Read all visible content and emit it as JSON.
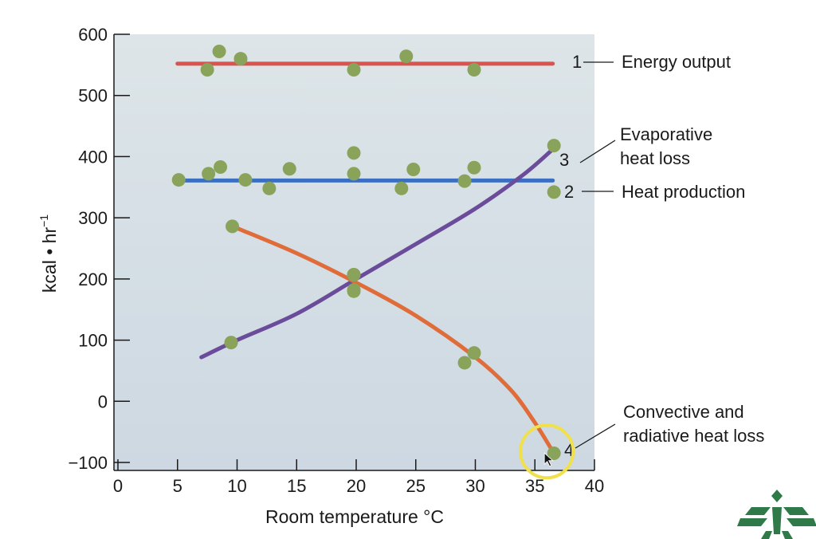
{
  "chart_data": {
    "type": "scatter",
    "title": "",
    "xlabel": "Room temperature °C",
    "ylabel": "kcal • hr",
    "ylabel_superscript": "−1",
    "xlim": [
      0,
      40
    ],
    "ylim": [
      -100,
      600
    ],
    "x_ticks": [
      0,
      5,
      10,
      15,
      20,
      25,
      30,
      35,
      40
    ],
    "y_ticks": [
      600,
      500,
      400,
      300,
      200,
      100,
      0,
      -100
    ],
    "y_tick_labels": [
      "600",
      "500",
      "400",
      "300",
      "200",
      "100",
      "0",
      "−100"
    ],
    "grid": false,
    "series": [
      {
        "label": "1",
        "name_lines": [
          "Energy output"
        ],
        "color": "#d9534f",
        "fit": "linear",
        "line": [
          [
            5,
            552
          ],
          [
            36.5,
            552
          ]
        ],
        "points": [
          [
            7.5,
            542
          ],
          [
            8.5,
            572
          ],
          [
            10.3,
            560
          ],
          [
            19.8,
            542
          ],
          [
            24.2,
            564
          ],
          [
            29.9,
            542
          ]
        ]
      },
      {
        "label": "2",
        "name_lines": [
          "Heat production"
        ],
        "color": "#3a6fc4",
        "fit": "linear",
        "line": [
          [
            5.5,
            361
          ],
          [
            36.5,
            361
          ]
        ],
        "points": [
          [
            5.1,
            362
          ],
          [
            7.6,
            372
          ],
          [
            8.6,
            383
          ],
          [
            10.7,
            362
          ],
          [
            12.7,
            348
          ],
          [
            14.4,
            380
          ],
          [
            19.8,
            372
          ],
          [
            19.8,
            406
          ],
          [
            23.8,
            348
          ],
          [
            24.8,
            379
          ],
          [
            29.1,
            360
          ],
          [
            29.9,
            382
          ],
          [
            36.6,
            342
          ]
        ]
      },
      {
        "label": "3",
        "name_lines": [
          "Evaporative",
          "heat loss"
        ],
        "color": "#6b4c9a",
        "fit": "curve",
        "line": [
          [
            7,
            72
          ],
          [
            10,
            100
          ],
          [
            15,
            143
          ],
          [
            20,
            200
          ],
          [
            25,
            257
          ],
          [
            30,
            315
          ],
          [
            34,
            370
          ],
          [
            36.5,
            412
          ]
        ],
        "points": [
          [
            9.5,
            96
          ],
          [
            19.8,
            207
          ],
          [
            19.8,
            182
          ],
          [
            36.6,
            418
          ]
        ]
      },
      {
        "label": "4",
        "name_lines": [
          "Convective and",
          "radiative heat loss"
        ],
        "color": "#e06c3a",
        "fit": "curve",
        "line": [
          [
            10,
            283
          ],
          [
            15,
            242
          ],
          [
            20,
            194
          ],
          [
            25,
            140
          ],
          [
            30,
            72
          ],
          [
            33,
            18
          ],
          [
            35,
            -35
          ],
          [
            36.5,
            -82
          ]
        ],
        "points": [
          [
            9.6,
            286
          ],
          [
            19.8,
            207
          ],
          [
            19.8,
            180
          ],
          [
            29.1,
            63
          ],
          [
            29.9,
            79
          ],
          [
            36.6,
            -85
          ]
        ]
      }
    ],
    "point_color": "#8aa35a"
  },
  "highlight": {
    "color": "#f0e04a",
    "center": [
      36.0,
      -82
    ]
  },
  "logo": {
    "name": "university-logo",
    "color": "#2f7a48"
  }
}
